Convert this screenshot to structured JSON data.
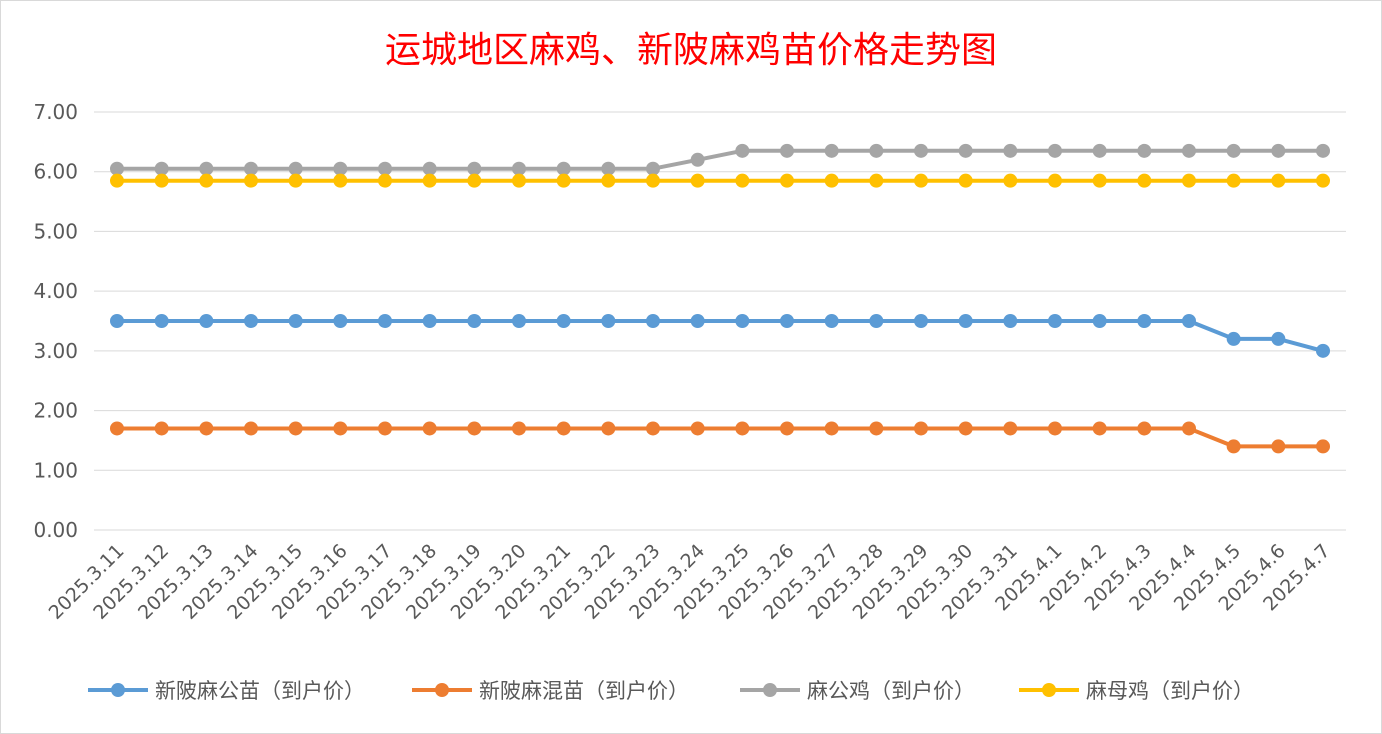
{
  "chart_data": {
    "type": "line",
    "title": "运城地区麻鸡、新陂麻鸡苗价格走势图",
    "title_color": "#ff0000",
    "xlabel": "",
    "ylabel": "",
    "ylim": [
      0,
      7
    ],
    "y_ticks": [
      "0.00",
      "1.00",
      "2.00",
      "3.00",
      "4.00",
      "5.00",
      "6.00",
      "7.00"
    ],
    "grid": "horizontal",
    "legend_position": "bottom",
    "categories": [
      "2025.3.11",
      "2025.3.12",
      "2025.3.13",
      "2025.3.14",
      "2025.3.15",
      "2025.3.16",
      "2025.3.17",
      "2025.3.18",
      "2025.3.19",
      "2025.3.20",
      "2025.3.21",
      "2025.3.22",
      "2025.3.23",
      "2025.3.24",
      "2025.3.25",
      "2025.3.26",
      "2025.3.27",
      "2025.3.28",
      "2025.3.29",
      "2025.3.30",
      "2025.3.31",
      "2025.4.1",
      "2025.4.2",
      "2025.4.3",
      "2025.4.4",
      "2025.4.5",
      "2025.4.6",
      "2025.4.7"
    ],
    "series": [
      {
        "name": "新陂麻公苗（到户价）",
        "color": "#5b9bd5",
        "values": [
          3.5,
          3.5,
          3.5,
          3.5,
          3.5,
          3.5,
          3.5,
          3.5,
          3.5,
          3.5,
          3.5,
          3.5,
          3.5,
          3.5,
          3.5,
          3.5,
          3.5,
          3.5,
          3.5,
          3.5,
          3.5,
          3.5,
          3.5,
          3.5,
          3.5,
          3.2,
          3.2,
          3.0
        ]
      },
      {
        "name": "新陂麻混苗（到户价）",
        "color": "#ed7d31",
        "values": [
          1.7,
          1.7,
          1.7,
          1.7,
          1.7,
          1.7,
          1.7,
          1.7,
          1.7,
          1.7,
          1.7,
          1.7,
          1.7,
          1.7,
          1.7,
          1.7,
          1.7,
          1.7,
          1.7,
          1.7,
          1.7,
          1.7,
          1.7,
          1.7,
          1.7,
          1.4,
          1.4,
          1.4
        ]
      },
      {
        "name": "麻公鸡（到户价）",
        "color": "#a5a5a5",
        "values": [
          6.05,
          6.05,
          6.05,
          6.05,
          6.05,
          6.05,
          6.05,
          6.05,
          6.05,
          6.05,
          6.05,
          6.05,
          6.05,
          6.2,
          6.35,
          6.35,
          6.35,
          6.35,
          6.35,
          6.35,
          6.35,
          6.35,
          6.35,
          6.35,
          6.35,
          6.35,
          6.35,
          6.35
        ]
      },
      {
        "name": "麻母鸡（到户价）",
        "color": "#ffc000",
        "values": [
          5.85,
          5.85,
          5.85,
          5.85,
          5.85,
          5.85,
          5.85,
          5.85,
          5.85,
          5.85,
          5.85,
          5.85,
          5.85,
          5.85,
          5.85,
          5.85,
          5.85,
          5.85,
          5.85,
          5.85,
          5.85,
          5.85,
          5.85,
          5.85,
          5.85,
          5.85,
          5.85,
          5.85
        ]
      }
    ]
  }
}
